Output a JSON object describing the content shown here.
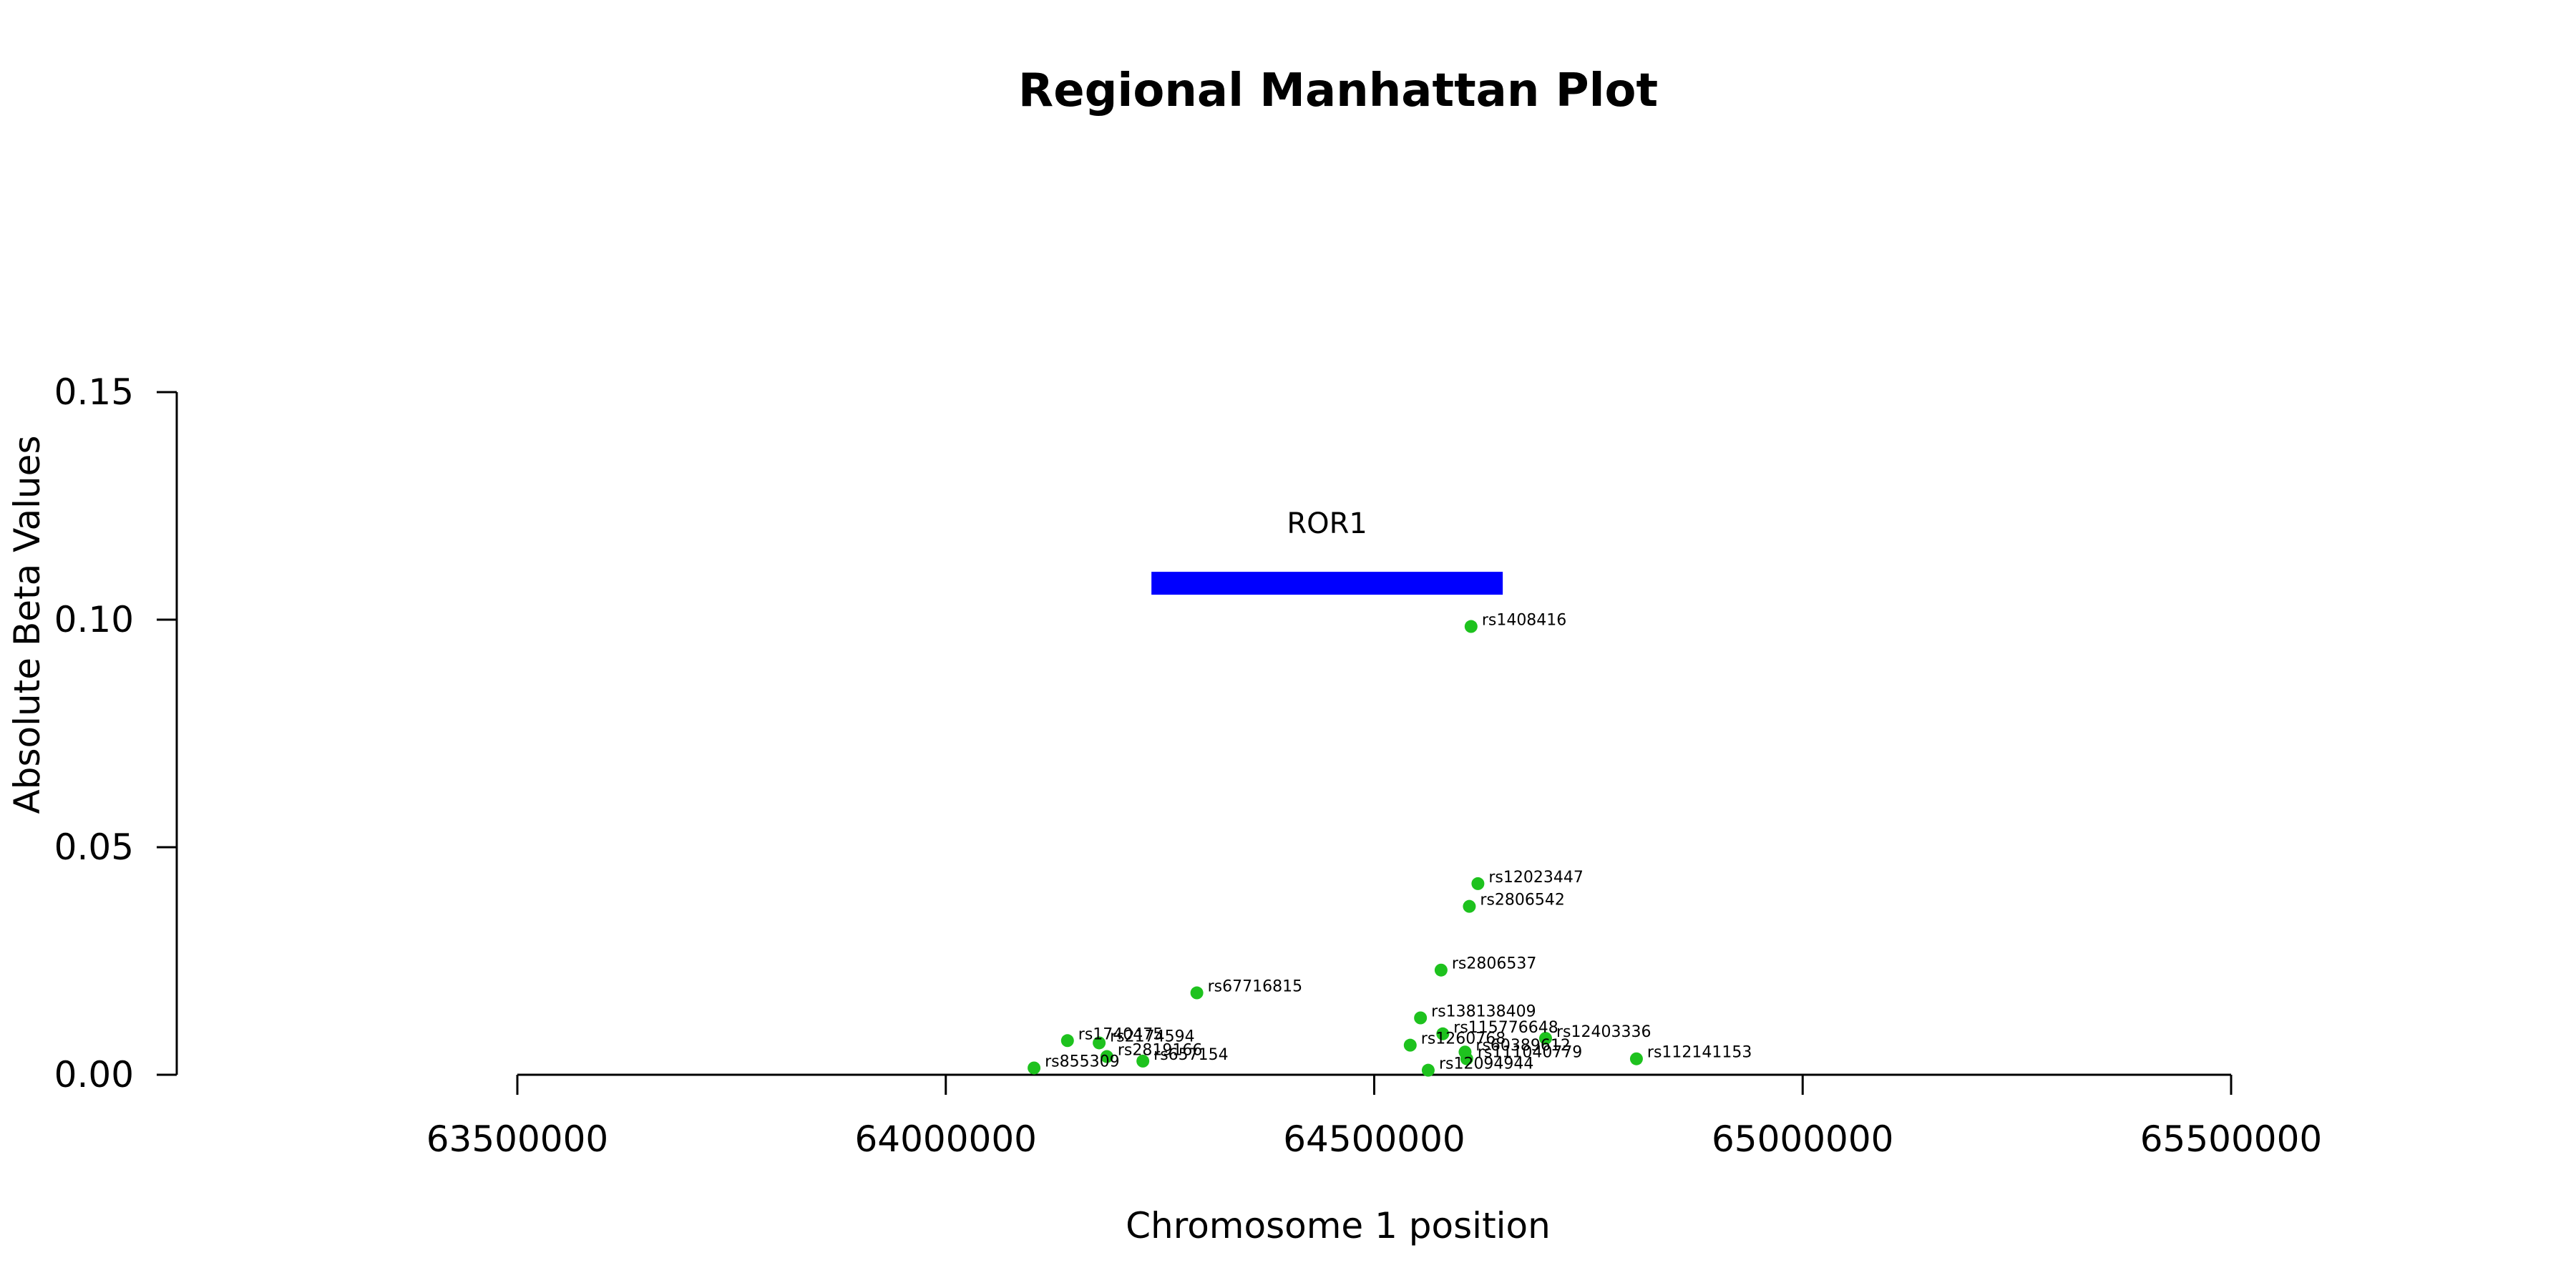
{
  "chart_data": {
    "type": "scatter",
    "title": "Regional Manhattan Plot",
    "xlabel": "Chromosome 1 position",
    "ylabel": "Absolute Beta Values",
    "xlim": [
      63500000,
      65500000
    ],
    "ylim": [
      0,
      0.15
    ],
    "x_ticks": [
      63500000,
      64000000,
      64500000,
      65000000,
      65500000
    ],
    "x_tick_labels": [
      "63500000",
      "64000000",
      "64500000",
      "65000000",
      "65500000"
    ],
    "y_ticks": [
      0,
      0.05,
      0.1,
      0.15
    ],
    "y_tick_labels": [
      "0.00",
      "0.05",
      "0.10",
      "0.15"
    ],
    "grid": false,
    "point_color": "#1ec21e",
    "gene": {
      "name": "ROR1",
      "start": 64240000,
      "end": 64650000,
      "y": 0.108,
      "color": "#0000ff"
    },
    "points": [
      {
        "label": "rs1408416",
        "x": 64613000,
        "y": 0.0985
      },
      {
        "label": "rs12023447",
        "x": 64621000,
        "y": 0.042
      },
      {
        "label": "rs2806542",
        "x": 64611000,
        "y": 0.037
      },
      {
        "label": "rs2806537",
        "x": 64578000,
        "y": 0.023
      },
      {
        "label": "rs67716815",
        "x": 64293000,
        "y": 0.018
      },
      {
        "label": "rs138138409",
        "x": 64554000,
        "y": 0.0125
      },
      {
        "label": "rs115776648",
        "x": 64580000,
        "y": 0.009
      },
      {
        "label": "rs12403336",
        "x": 64700000,
        "y": 0.008
      },
      {
        "label": "rs1740475",
        "x": 64142000,
        "y": 0.0075
      },
      {
        "label": "rs2174594",
        "x": 64179000,
        "y": 0.007
      },
      {
        "label": "rs1260768",
        "x": 64542000,
        "y": 0.0065
      },
      {
        "label": "rs60389612",
        "x": 64606000,
        "y": 0.005
      },
      {
        "label": "rs2819166",
        "x": 64188000,
        "y": 0.004
      },
      {
        "label": "rs112141153",
        "x": 64806000,
        "y": 0.0035
      },
      {
        "label": "rs111040779",
        "x": 64608000,
        "y": 0.0035
      },
      {
        "label": "rs657154",
        "x": 64230000,
        "y": 0.003
      },
      {
        "label": "rs855309",
        "x": 64103000,
        "y": 0.0015
      },
      {
        "label": "rs12094944",
        "x": 64563000,
        "y": 0.001
      }
    ]
  }
}
